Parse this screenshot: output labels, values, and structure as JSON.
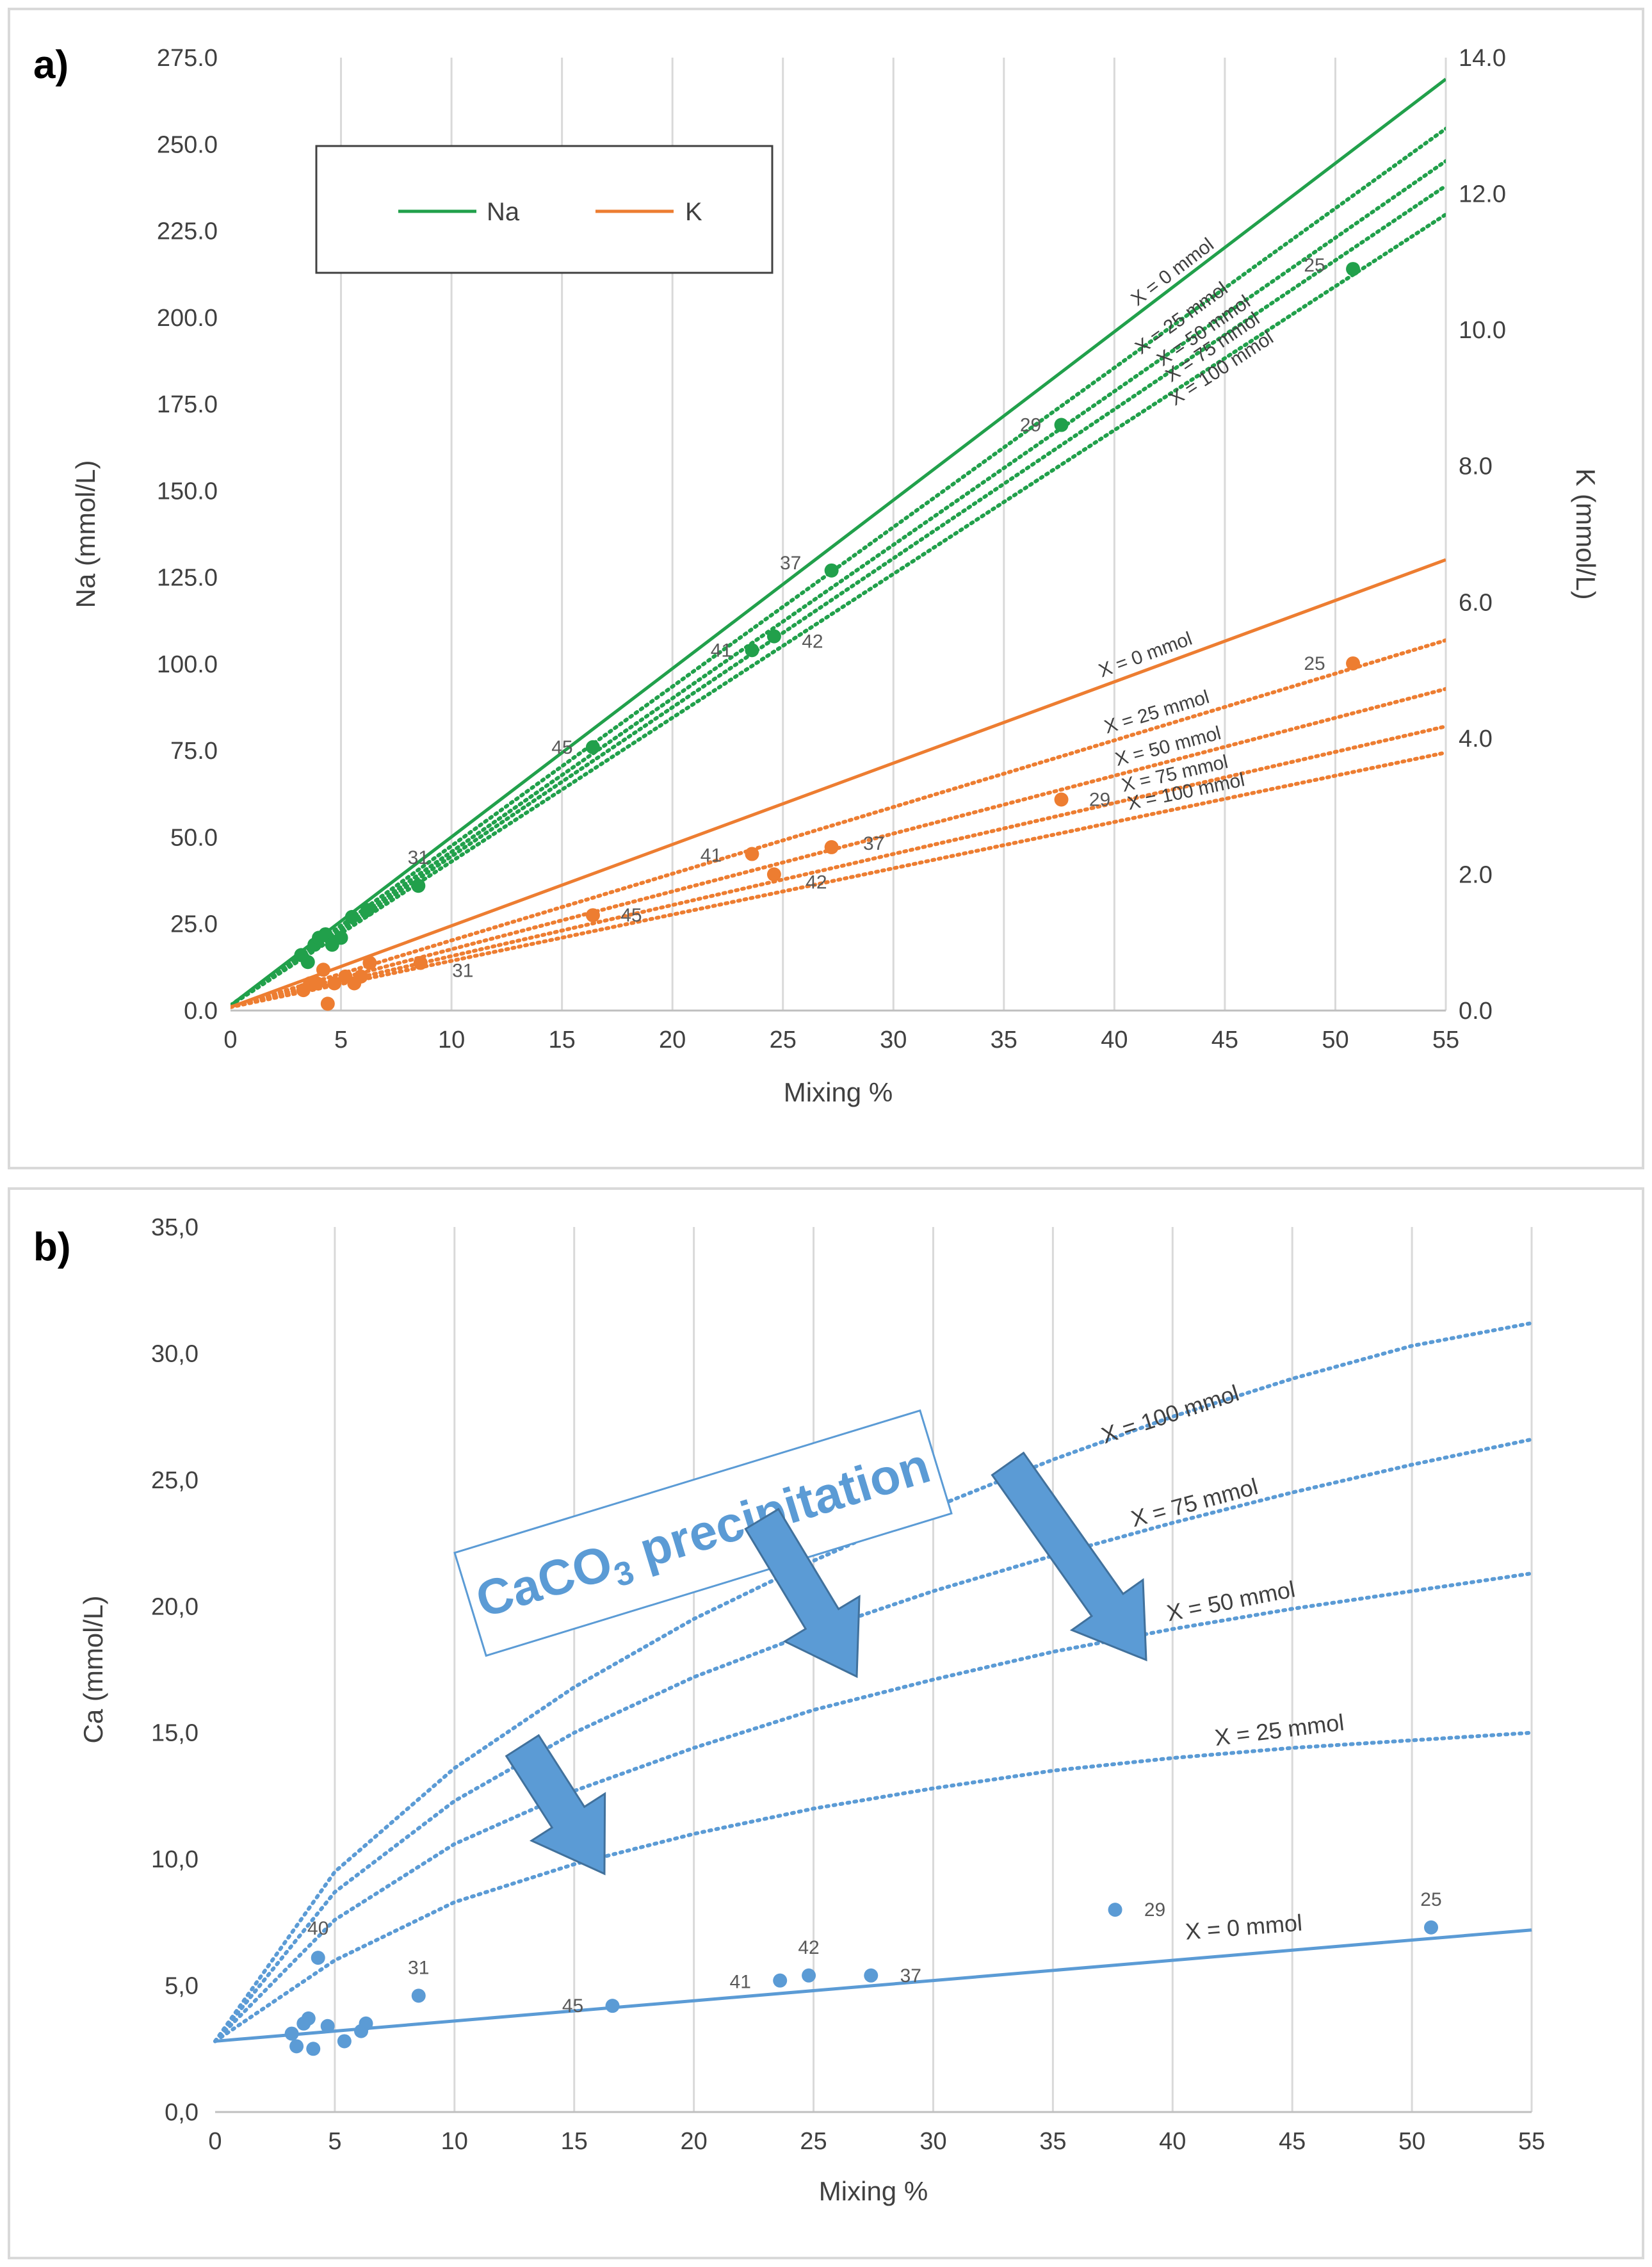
{
  "panels": {
    "a": {
      "letter": "a)"
    },
    "b": {
      "letter": "b)"
    }
  },
  "chart_data": [
    {
      "type": "scatter",
      "panel": "a)",
      "xlabel": "Mixing %",
      "ylabel": "Na (mmol/L)",
      "y2label": "K (mmol/L)",
      "xlim": [
        0,
        55
      ],
      "ylim": [
        0,
        275
      ],
      "y2lim": [
        0,
        14
      ],
      "xticks": [
        "0",
        "5",
        "10",
        "15",
        "20",
        "25",
        "30",
        "35",
        "40",
        "45",
        "50",
        "55"
      ],
      "yticks": [
        "0.0",
        "25.0",
        "50.0",
        "75.0",
        "100.0",
        "125.0",
        "150.0",
        "175.0",
        "200.0",
        "225.0",
        "250.0",
        "275.0"
      ],
      "y2ticks": [
        "0.0",
        "2.0",
        "4.0",
        "6.0",
        "8.0",
        "10.0",
        "12.0",
        "14.0"
      ],
      "grid": "vertical",
      "legend": {
        "placement": "top-left",
        "entries": [
          "Na",
          "K"
        ]
      },
      "colors": {
        "Na": "#21a04b",
        "K": "#ed7d31"
      },
      "series": [
        {
          "name": "Na",
          "axis": "left",
          "points": [
            [
              3.2,
              16
            ],
            [
              3.5,
              14
            ],
            [
              3.8,
              19
            ],
            [
              4.0,
              21
            ],
            [
              4.3,
              22
            ],
            [
              4.6,
              19
            ],
            [
              5.0,
              21
            ],
            [
              5.5,
              27
            ],
            [
              6.2,
              29
            ],
            [
              8.5,
              36
            ],
            [
              16.4,
              76
            ],
            [
              23.6,
              104
            ],
            [
              24.6,
              108
            ],
            [
              27.2,
              127
            ],
            [
              37.6,
              169
            ],
            [
              50.8,
              214
            ]
          ],
          "labels": [
            {
              "x": 8.5,
              "y": 36,
              "text": "31"
            },
            {
              "x": 16.4,
              "y": 76,
              "text": "45"
            },
            {
              "x": 23.6,
              "y": 104,
              "text": "41"
            },
            {
              "x": 24.6,
              "y": 108,
              "text": "42"
            },
            {
              "x": 27.2,
              "y": 127,
              "text": "37"
            },
            {
              "x": 37.6,
              "y": 169,
              "text": "29"
            },
            {
              "x": 50.8,
              "y": 214,
              "text": "25"
            }
          ],
          "lines": [
            {
              "text": "X = 0 mmol",
              "slope": 4.86,
              "intercept": 1.5,
              "style": "solid"
            },
            {
              "text": "X = 25 mmol",
              "slope": 4.6,
              "intercept": 1.5,
              "style": "dotted"
            },
            {
              "text": "X = 50 mmol",
              "slope": 4.43,
              "intercept": 1.5,
              "style": "dotted"
            },
            {
              "text": "X = 75 mmol",
              "slope": 4.3,
              "intercept": 1.5,
              "style": "dotted"
            },
            {
              "text": "X = 100 mmol",
              "slope": 4.15,
              "intercept": 1.5,
              "style": "dotted"
            }
          ]
        },
        {
          "name": "K",
          "axis": "right",
          "points": [
            [
              3.3,
              0.3
            ],
            [
              3.6,
              0.4
            ],
            [
              3.9,
              0.4
            ],
            [
              4.2,
              0.6
            ],
            [
              4.4,
              0.1
            ],
            [
              4.7,
              0.4
            ],
            [
              5.2,
              0.5
            ],
            [
              5.6,
              0.4
            ],
            [
              5.9,
              0.5
            ],
            [
              6.3,
              0.7
            ],
            [
              8.6,
              0.7
            ],
            [
              16.4,
              1.4
            ],
            [
              23.6,
              2.3
            ],
            [
              24.6,
              2.0
            ],
            [
              27.2,
              2.4
            ],
            [
              37.6,
              3.1
            ],
            [
              50.8,
              5.1
            ]
          ],
          "labels": [
            {
              "x": 8.6,
              "y": 0.7,
              "text": "31"
            },
            {
              "x": 16.4,
              "y": 1.4,
              "text": "45"
            },
            {
              "x": 23.6,
              "y": 2.3,
              "text": "41"
            },
            {
              "x": 24.6,
              "y": 2.0,
              "text": "42"
            },
            {
              "x": 27.2,
              "y": 2.4,
              "text": "37"
            },
            {
              "x": 37.6,
              "y": 3.1,
              "text": "29"
            },
            {
              "x": 50.8,
              "y": 5.1,
              "text": "25"
            }
          ],
          "lines": [
            {
              "text": "X = 0 mmol",
              "slope": 0.1195,
              "intercept": 0.05,
              "style": "solid"
            },
            {
              "text": "X = 25 mmol",
              "slope": 0.098,
              "intercept": 0.05,
              "style": "dotted"
            },
            {
              "text": "X = 50 mmol",
              "slope": 0.085,
              "intercept": 0.05,
              "style": "dotted"
            },
            {
              "text": "X = 75 mmol",
              "slope": 0.075,
              "intercept": 0.05,
              "style": "dotted"
            },
            {
              "text": "X = 100 mmol",
              "slope": 0.068,
              "intercept": 0.05,
              "style": "dotted"
            }
          ]
        }
      ]
    },
    {
      "type": "scatter",
      "panel": "b)",
      "xlabel": "Mixing %",
      "ylabel": "Ca (mmol/L)",
      "xlim": [
        0,
        55
      ],
      "ylim": [
        0,
        35
      ],
      "xticks": [
        "0",
        "5",
        "10",
        "15",
        "20",
        "25",
        "30",
        "35",
        "40",
        "45",
        "50",
        "55"
      ],
      "yticks": [
        "0,0",
        "5,0",
        "10,0",
        "15,0",
        "20,0",
        "25,0",
        "30,0",
        "35,0"
      ],
      "grid": "vertical",
      "colors": {
        "Ca": "#5b9bd5"
      },
      "annotation": {
        "text_main": "CaCO",
        "text_sub": "3",
        "text_tail": " precipitation"
      },
      "series": [
        {
          "name": "Ca",
          "points": [
            [
              3.2,
              3.1
            ],
            [
              3.4,
              2.6
            ],
            [
              3.7,
              3.5
            ],
            [
              3.9,
              3.7
            ],
            [
              4.1,
              2.5
            ],
            [
              4.3,
              6.1
            ],
            [
              4.7,
              3.4
            ],
            [
              5.4,
              2.8
            ],
            [
              6.1,
              3.2
            ],
            [
              6.3,
              3.5
            ],
            [
              8.5,
              4.6
            ],
            [
              16.6,
              4.2
            ],
            [
              23.6,
              5.2
            ],
            [
              24.8,
              5.4
            ],
            [
              27.4,
              5.4
            ],
            [
              37.6,
              8.0
            ],
            [
              50.8,
              7.3
            ]
          ],
          "labels": [
            {
              "x": 4.3,
              "y": 6.1,
              "text": "40"
            },
            {
              "x": 8.5,
              "y": 4.6,
              "text": "31"
            },
            {
              "x": 16.6,
              "y": 4.2,
              "text": "45"
            },
            {
              "x": 23.6,
              "y": 5.2,
              "text": "41"
            },
            {
              "x": 24.8,
              "y": 5.4,
              "text": "42"
            },
            {
              "x": 27.4,
              "y": 5.4,
              "text": "37"
            },
            {
              "x": 37.6,
              "y": 8.0,
              "text": "29"
            },
            {
              "x": 50.8,
              "y": 7.3,
              "text": "25"
            }
          ],
          "curves": [
            {
              "text": "X = 0 mmol",
              "style": "solid",
              "pts": [
                [
                  0,
                  2.8
                ],
                [
                  55,
                  7.2
                ]
              ]
            },
            {
              "text": "X = 25 mmol",
              "style": "dotted",
              "pts": [
                [
                  0,
                  2.8
                ],
                [
                  5,
                  6.0
                ],
                [
                  10,
                  8.3
                ],
                [
                  15,
                  9.8
                ],
                [
                  20,
                  11.0
                ],
                [
                  25,
                  12.0
                ],
                [
                  30,
                  12.8
                ],
                [
                  35,
                  13.5
                ],
                [
                  40,
                  14.0
                ],
                [
                  45,
                  14.4
                ],
                [
                  50,
                  14.7
                ],
                [
                  55,
                  15.0
                ]
              ]
            },
            {
              "text": "X = 50 mmol",
              "style": "dotted",
              "pts": [
                [
                  0,
                  2.8
                ],
                [
                  5,
                  7.6
                ],
                [
                  10,
                  10.6
                ],
                [
                  15,
                  12.7
                ],
                [
                  20,
                  14.4
                ],
                [
                  25,
                  15.9
                ],
                [
                  30,
                  17.1
                ],
                [
                  35,
                  18.2
                ],
                [
                  40,
                  19.1
                ],
                [
                  45,
                  19.9
                ],
                [
                  50,
                  20.6
                ],
                [
                  55,
                  21.3
                ]
              ]
            },
            {
              "text": "X = 75 mmol",
              "style": "dotted",
              "pts": [
                [
                  0,
                  2.8
                ],
                [
                  5,
                  8.7
                ],
                [
                  10,
                  12.3
                ],
                [
                  15,
                  15.0
                ],
                [
                  20,
                  17.2
                ],
                [
                  25,
                  19.0
                ],
                [
                  30,
                  20.6
                ],
                [
                  35,
                  22.0
                ],
                [
                  40,
                  23.3
                ],
                [
                  45,
                  24.5
                ],
                [
                  50,
                  25.6
                ],
                [
                  55,
                  26.6
                ]
              ]
            },
            {
              "text": "X = 100 mmol",
              "style": "dotted",
              "pts": [
                [
                  0,
                  2.8
                ],
                [
                  5,
                  9.5
                ],
                [
                  10,
                  13.6
                ],
                [
                  15,
                  16.8
                ],
                [
                  20,
                  19.5
                ],
                [
                  25,
                  21.8
                ],
                [
                  30,
                  23.9
                ],
                [
                  35,
                  25.8
                ],
                [
                  40,
                  27.5
                ],
                [
                  45,
                  29.0
                ],
                [
                  50,
                  30.3
                ],
                [
                  55,
                  31.2
                ]
              ]
            }
          ]
        }
      ]
    }
  ]
}
